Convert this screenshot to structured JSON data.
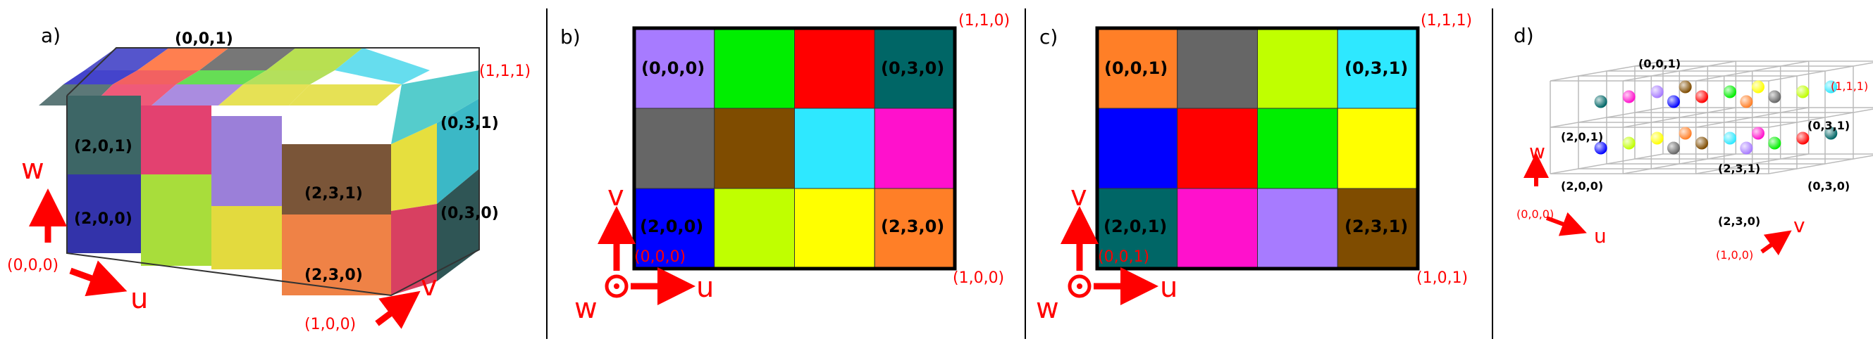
{
  "panels": {
    "a": {
      "letter": "a)",
      "corner_origin": "(0,0,0)",
      "corner_u": "(1,0,0)",
      "corner_uvw": "(1,1,1)",
      "axis_u": "u",
      "axis_v": "v",
      "axis_w": "w",
      "cell_labels": [
        "(0,0,1)",
        "(2,0,1)",
        "(2,0,0)",
        "(2,3,1)",
        "(2,3,0)",
        "(0,3,1)",
        "(0,3,0)"
      ]
    },
    "b": {
      "letter": "b)",
      "corner_origin": "(0,0,0)",
      "corner_tr": "(1,1,0)",
      "corner_br": "(1,0,0)",
      "axis_u": "u",
      "axis_v": "v",
      "axis_w": "w",
      "cell_labels": [
        "(0,0,0)",
        "(0,3,0)",
        "(2,0,0)",
        "(2,3,0)"
      ],
      "grid_colors": [
        [
          "#a77bff",
          "#00ee00",
          "#ff0000",
          "#006666"
        ],
        [
          "#666666",
          "#7f4c00",
          "#2ee8ff",
          "#ff11cc"
        ],
        [
          "#0000ff",
          "#c0ff00",
          "#ffff00",
          "#ff7f27"
        ]
      ]
    },
    "c": {
      "letter": "c)",
      "corner_origin": "(0,0,1)",
      "corner_tr": "(1,1,1)",
      "corner_br": "(1,0,1)",
      "axis_u": "u",
      "axis_v": "v",
      "axis_w": "w",
      "cell_labels": [
        "(0,0,1)",
        "(0,3,1)",
        "(2,0,1)",
        "(2,3,1)"
      ],
      "grid_colors": [
        [
          "#ff7f27",
          "#666666",
          "#c0ff00",
          "#2ee8ff"
        ],
        [
          "#0000ff",
          "#ff0000",
          "#00ee00",
          "#ffff00"
        ],
        [
          "#006666",
          "#ff11cc",
          "#a77bff",
          "#7f4c00"
        ]
      ]
    },
    "d": {
      "letter": "d)",
      "corner_origin": "(0,0,0)",
      "corner_u": "(1,0,0)",
      "corner_uvw": "(1,1,1)",
      "axis_u": "u",
      "axis_v": "v",
      "axis_w": "w",
      "cell_labels": [
        "(0,0,1)",
        "(2,0,1)",
        "(2,0,0)",
        "(2,3,1)",
        "(2,3,0)",
        "(0,3,1)",
        "(0,3,0)"
      ]
    }
  }
}
